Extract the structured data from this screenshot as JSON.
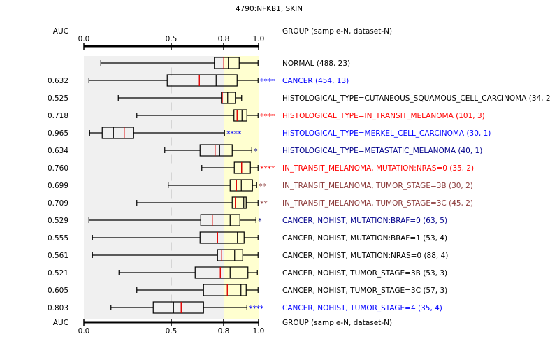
{
  "chart_data": {
    "type": "boxplot",
    "title": "4790:NFKB1, SKIN",
    "left_header": "AUC",
    "right_header": "GROUP (sample-N, dataset-N)",
    "xlim": [
      0.0,
      1.0
    ],
    "xticks": [
      0.0,
      0.5,
      0.8,
      1.0
    ],
    "xtick_labels": [
      "0.0",
      "0.5",
      "0.8",
      "1.0"
    ],
    "reference_line": 0.5,
    "shaded_regions": [
      {
        "from": 0.0,
        "to": 0.8,
        "color": "#f0f0f0"
      },
      {
        "from": 0.8,
        "to": 1.0,
        "color": "#ffffd0"
      }
    ],
    "median_color": "#000000",
    "mean_color": "#e00000",
    "rows": [
      {
        "label": "NORMAL (488, 23)",
        "auc": "",
        "stars": "",
        "color": "#000000",
        "whisker_low": 0.097,
        "q1": 0.747,
        "median": 0.827,
        "mean": 0.801,
        "q3": 0.889,
        "whisker_high": 0.997
      },
      {
        "label": "CANCER (454, 13)",
        "auc": "0.632",
        "stars": "****",
        "color": "#0000ff",
        "whisker_low": 0.029,
        "q1": 0.477,
        "median": 0.757,
        "mean": 0.661,
        "q3": 0.877,
        "whisker_high": 0.997
      },
      {
        "label": "HISTOLOGICAL_TYPE=CUTANEOUS_SQUAMOUS_CELL_CARCINOMA (34, 2)",
        "auc": "0.525",
        "stars": "",
        "color": "#000000",
        "whisker_low": 0.197,
        "q1": 0.787,
        "median": 0.823,
        "mean": 0.792,
        "q3": 0.867,
        "whisker_high": 0.903
      },
      {
        "label": "HISTOLOGICAL_TYPE=IN_TRANSIT_MELANOMA (101, 3)",
        "auc": "0.718",
        "stars": "****",
        "color": "#ff0000",
        "whisker_low": 0.303,
        "q1": 0.859,
        "median": 0.905,
        "mean": 0.877,
        "q3": 0.933,
        "whisker_high": 0.997
      },
      {
        "label": "HISTOLOGICAL_TYPE=MERKEL_CELL_CARCINOMA (30, 1)",
        "auc": "0.965",
        "stars": "****",
        "color": "#0000ff",
        "whisker_low": 0.033,
        "q1": 0.105,
        "median": 0.169,
        "mean": 0.231,
        "q3": 0.285,
        "whisker_high": 0.805
      },
      {
        "label": "HISTOLOGICAL_TYPE=METASTATIC_MELANOMA (40, 1)",
        "auc": "0.634",
        "stars": "*",
        "color": "#00008b",
        "whisker_low": 0.463,
        "q1": 0.665,
        "median": 0.777,
        "mean": 0.751,
        "q3": 0.849,
        "whisker_high": 0.961
      },
      {
        "label": "IN_TRANSIT_MELANOMA, MUTATION:NRAS=0 (35, 2)",
        "auc": "0.760",
        "stars": "****",
        "color": "#ff0000",
        "whisker_low": 0.675,
        "q1": 0.861,
        "median": 0.903,
        "mean": 0.903,
        "q3": 0.953,
        "whisker_high": 0.997
      },
      {
        "label": "IN_TRANSIT_MELANOMA, TUMOR_STAGE=3B (30, 2)",
        "auc": "0.699",
        "stars": "**",
        "color": "#8b3a3a",
        "whisker_low": 0.483,
        "q1": 0.837,
        "median": 0.901,
        "mean": 0.873,
        "q3": 0.965,
        "whisker_high": 0.989
      },
      {
        "label": "IN_TRANSIT_MELANOMA, TUMOR_STAGE=3C (45, 2)",
        "auc": "0.709",
        "stars": "**",
        "color": "#8b3a3a",
        "whisker_low": 0.303,
        "q1": 0.849,
        "median": 0.915,
        "mean": 0.867,
        "q3": 0.929,
        "whisker_high": 0.997
      },
      {
        "label": "CANCER, NOHIST, MUTATION:BRAF=0 (63, 5)",
        "auc": "0.529",
        "stars": "*",
        "color": "#00008b",
        "whisker_low": 0.029,
        "q1": 0.669,
        "median": 0.837,
        "mean": 0.735,
        "q3": 0.893,
        "whisker_high": 0.985
      },
      {
        "label": "CANCER, NOHIST, MUTATION:BRAF=1 (53, 4)",
        "auc": "0.555",
        "stars": "",
        "color": "#000000",
        "whisker_low": 0.049,
        "q1": 0.665,
        "median": 0.879,
        "mean": 0.765,
        "q3": 0.917,
        "whisker_high": 0.997
      },
      {
        "label": "CANCER, NOHIST, MUTATION:NRAS=0 (88, 4)",
        "auc": "0.561",
        "stars": "",
        "color": "#000000",
        "whisker_low": 0.049,
        "q1": 0.765,
        "median": 0.863,
        "mean": 0.789,
        "q3": 0.909,
        "whisker_high": 0.997
      },
      {
        "label": "CANCER, NOHIST, TUMOR_STAGE=3B (53, 3)",
        "auc": "0.521",
        "stars": "",
        "color": "#000000",
        "whisker_low": 0.201,
        "q1": 0.637,
        "median": 0.837,
        "mean": 0.781,
        "q3": 0.939,
        "whisker_high": 0.993
      },
      {
        "label": "CANCER, NOHIST, TUMOR_STAGE=3C (57, 3)",
        "auc": "0.605",
        "stars": "",
        "color": "#000000",
        "whisker_low": 0.303,
        "q1": 0.685,
        "median": 0.899,
        "mean": 0.821,
        "q3": 0.929,
        "whisker_high": 0.997
      },
      {
        "label": "CANCER, NOHIST, TUMOR_STAGE=4 (35, 4)",
        "auc": "0.803",
        "stars": "****",
        "color": "#0000ff",
        "whisker_low": 0.155,
        "q1": 0.397,
        "median": 0.513,
        "mean": 0.557,
        "q3": 0.685,
        "whisker_high": 0.933
      }
    ]
  }
}
